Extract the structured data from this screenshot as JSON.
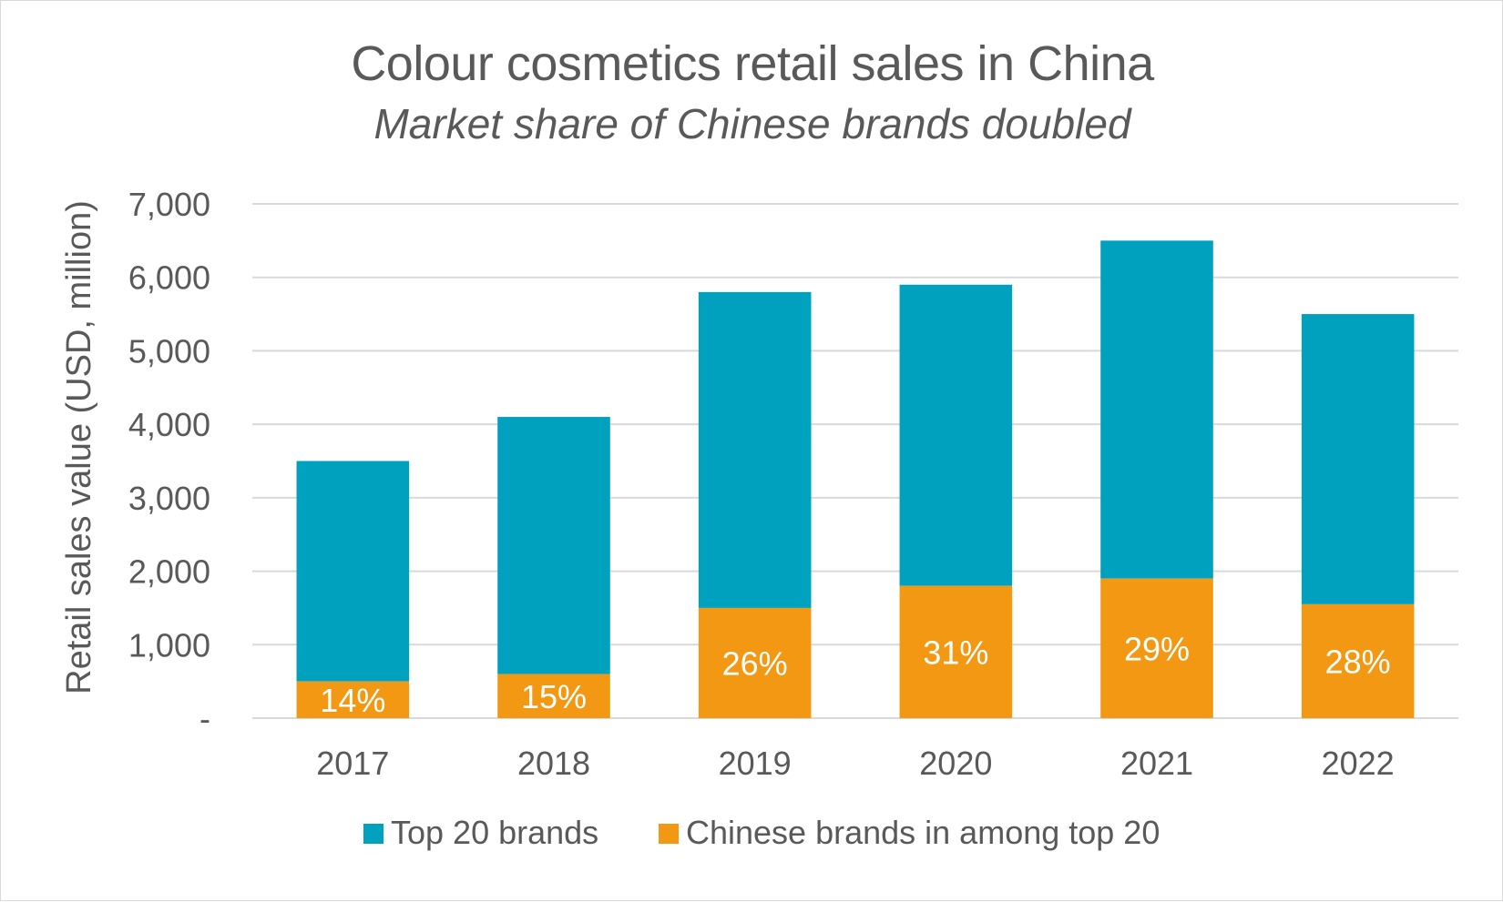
{
  "chart_data": {
    "type": "bar",
    "stacked": true,
    "title": "Colour cosmetics retail sales in China",
    "subtitle": "Market share of Chinese brands doubled",
    "ylabel": "Retail sales value (USD, million)",
    "xlabel": "",
    "ylim": [
      0,
      7000
    ],
    "yticks": [
      0,
      1000,
      2000,
      3000,
      4000,
      5000,
      6000,
      7000
    ],
    "ytick_labels": [
      "-",
      "1,000",
      "2,000",
      "3,000",
      "4,000",
      "5,000",
      "6,000",
      "7,000"
    ],
    "categories": [
      "2017",
      "2018",
      "2019",
      "2020",
      "2021",
      "2022"
    ],
    "series": [
      {
        "name": "Chinese brands in among top 20",
        "values": [
          500,
          600,
          1500,
          1800,
          1900,
          1550
        ],
        "color": "#F39813"
      },
      {
        "name": "Top 20 brands",
        "values": [
          3000,
          3500,
          4300,
          4100,
          4600,
          3950
        ],
        "color": "#00A1BF"
      }
    ],
    "totals": [
      3500,
      4100,
      5800,
      5900,
      6500,
      5500
    ],
    "data_labels": [
      "14%",
      "15%",
      "26%",
      "31%",
      "29%",
      "28%"
    ],
    "legend": {
      "position": "bottom",
      "entries": [
        {
          "label": "Top 20 brands",
          "color": "#00A1BF"
        },
        {
          "label": "Chinese brands in among top 20",
          "color": "#F39813"
        }
      ]
    },
    "grid": true
  }
}
